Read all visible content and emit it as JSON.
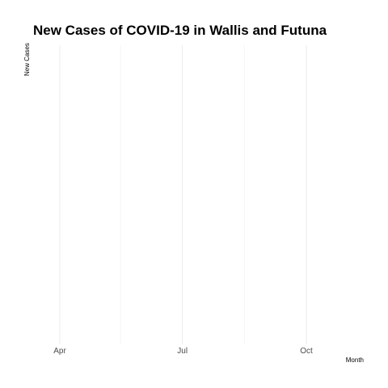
{
  "chart_data": {
    "type": "line",
    "title": "New Cases of COVID-19 in Wallis and Futuna",
    "xlabel": "Month",
    "ylabel": "New Cases",
    "x_tick_labels": [
      "Apr",
      "Jul",
      "Oct"
    ],
    "x_ticks": [
      "2020-04-01",
      "2020-07-01",
      "2020-10-01"
    ],
    "x_minor_ticks": [
      "2020-05-16",
      "2020-08-16"
    ],
    "xlim": [
      "2020-03-01",
      "2020-12-31"
    ],
    "series": [],
    "grid": true,
    "legend": "none"
  }
}
